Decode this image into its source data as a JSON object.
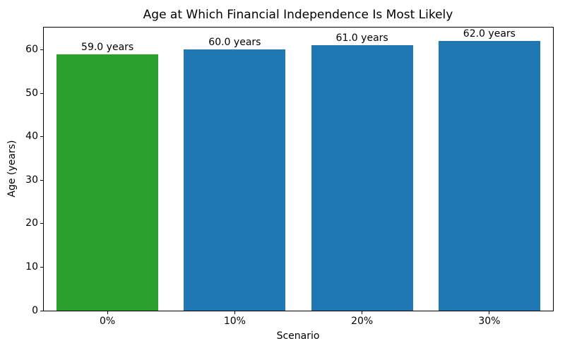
{
  "figure": {
    "background": "#ffffff",
    "frame_color": "#000000",
    "text_color": "#000000"
  },
  "chart_data": {
    "type": "bar",
    "title": "Age at Which Financial Independence Is Most Likely",
    "xlabel": "Scenario",
    "ylabel": "Age (years)",
    "categories": [
      "0%",
      "10%",
      "20%",
      "30%"
    ],
    "values": [
      59.0,
      60.0,
      61.0,
      62.0
    ],
    "bar_labels": [
      "59.0 years",
      "60.0 years",
      "61.0 years",
      "62.0 years"
    ],
    "bar_colors": [
      "#2ca02c",
      "#1f77b4",
      "#1f77b4",
      "#1f77b4"
    ],
    "yticks": [
      0,
      10,
      20,
      30,
      40,
      50,
      60
    ],
    "ylim": [
      0,
      65.1
    ],
    "bar_width_fraction": 0.8,
    "grid": false,
    "legend": "none"
  }
}
